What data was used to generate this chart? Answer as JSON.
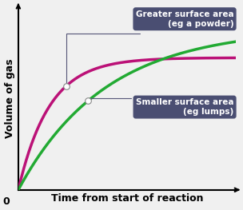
{
  "xlabel": "Time from start of reaction",
  "ylabel": "Volume of gas",
  "origin_label": "0",
  "curve1_label": "Greater surface area\n(eg a powder)",
  "curve2_label": "Smaller surface area\n(eg lumps)",
  "curve1_color": "#bb1177",
  "curve2_color": "#22aa33",
  "grid_color": "#cccccc",
  "annotation_box_color": "#4a4e72",
  "annotation_text_color": "#ffffff",
  "background_color": "#f0f0f0",
  "curve1_plateau": 0.72,
  "curve2_plateau": 0.88,
  "curve1_rate": 7.0,
  "curve2_rate": 2.5,
  "marker1_x": 0.22,
  "marker2_x": 0.32,
  "xlim": [
    0,
    1.0
  ],
  "ylim": [
    0,
    1.0
  ],
  "xlabel_fontsize": 9,
  "ylabel_fontsize": 9,
  "label_fontsize": 7.5
}
